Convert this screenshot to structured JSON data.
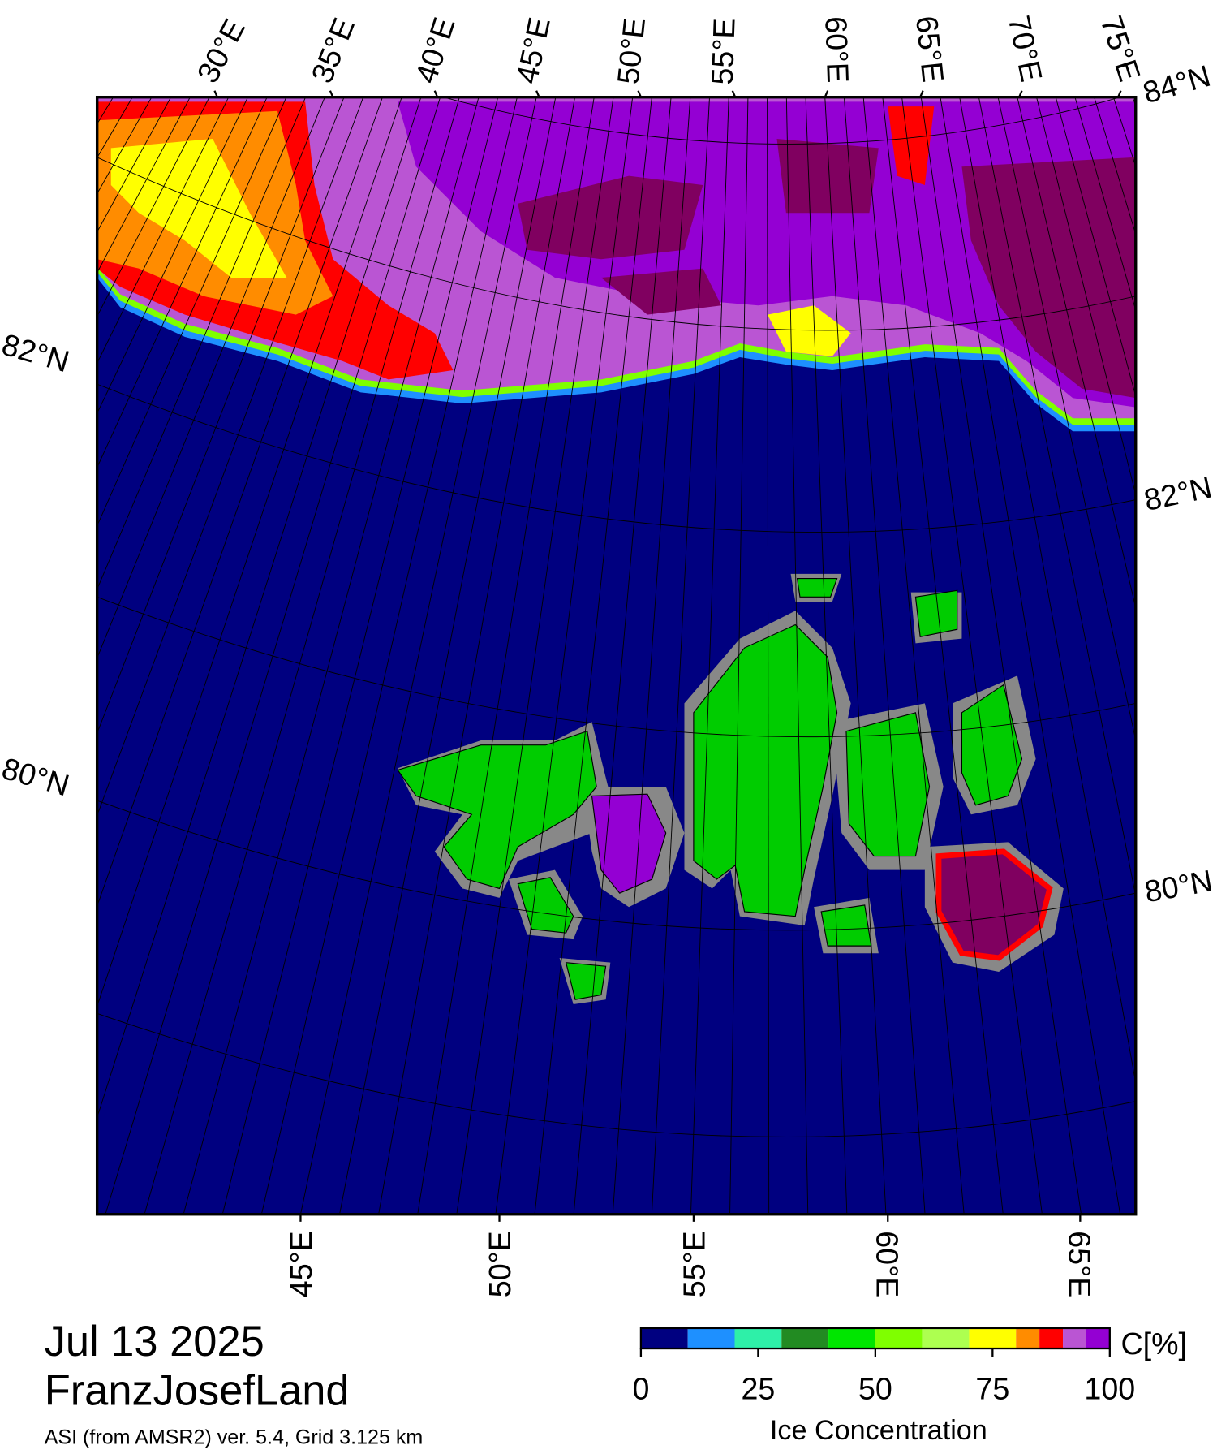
{
  "map": {
    "title": "Jul 13 2025",
    "region": "FranzJosefLand",
    "source": "ASI (from AMSR2) ver. 5.4,  Grid 3.125 km",
    "top_lon_labels": [
      "30°E",
      "35°E",
      "40°E",
      "45°E",
      "50°E",
      "55°E",
      "60°E",
      "65°E",
      "70°E",
      "75°E"
    ],
    "bottom_lon_labels": [
      "45°E",
      "50°E",
      "55°E",
      "60°E",
      "65°E"
    ],
    "left_lat_labels": [
      "82°N",
      "80°N"
    ],
    "right_lat_labels": [
      "84°N",
      "82°N",
      "80°N"
    ]
  },
  "colorbar": {
    "title": "Ice Concentration",
    "unit": "C[%]",
    "bounds": [
      0,
      10,
      20,
      30,
      40,
      50,
      60,
      70,
      80,
      85,
      90,
      95,
      100
    ],
    "colors": [
      "#000080",
      "#1e90ff",
      "#2ef0a8",
      "#228b22",
      "#00e600",
      "#7fff00",
      "#adff50",
      "#ffff00",
      "#ff8c00",
      "#ff0000",
      "#ba55d3",
      "#9400d3"
    ],
    "ticks": [
      0,
      25,
      50,
      75,
      100
    ]
  }
}
